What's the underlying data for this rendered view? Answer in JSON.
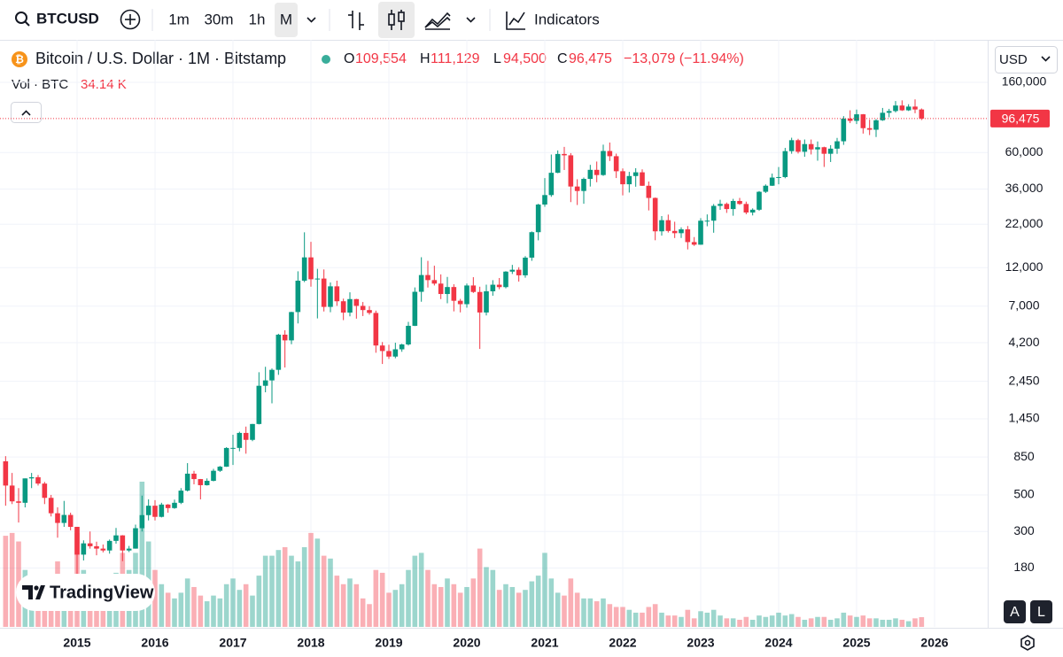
{
  "ui": {
    "symbol": "BTCUSD",
    "intervals": [
      "1m",
      "30m",
      "1h",
      "M"
    ],
    "indicators": "Indicators",
    "currency": "USD",
    "brand": "TradingView",
    "buttons": [
      "A",
      "L"
    ]
  },
  "chart_data": {
    "type": "candlestick",
    "title": "Bitcoin / U.S. Dollar · 1M · Bitstamp",
    "ohlc_prefixes": [
      "O",
      "H",
      "L",
      "C"
    ],
    "ohlc_labels": [
      "109,554",
      "111,129",
      "94,500",
      "96,475"
    ],
    "change_label": "−13,079 (−11.94%)",
    "volume_title": "Vol · BTC",
    "volume_label": "34.14 K",
    "log_scale": true,
    "grid": true,
    "up_color": "#089981",
    "down_color": "#f23645",
    "ylim": [
      79,
      290000
    ],
    "yticks": [
      {
        "value": 160000,
        "label": "160,000"
      },
      {
        "value": 60000,
        "label": "60,000"
      },
      {
        "value": 36000,
        "label": "36,000"
      },
      {
        "value": 22000,
        "label": "22,000"
      },
      {
        "value": 12000,
        "label": "12,000"
      },
      {
        "value": 7000,
        "label": "7,000"
      },
      {
        "value": 4200,
        "label": "4,200"
      },
      {
        "value": 2450,
        "label": "2,450"
      },
      {
        "value": 1450,
        "label": "1,450"
      },
      850,
      500,
      300,
      180
    ],
    "years": [
      "2015",
      "2016",
      "2017",
      "2018",
      "2019",
      "2020",
      "2021",
      "2022",
      "2023",
      "2024",
      "2025",
      "2026"
    ],
    "ohlc": [
      [
        800,
        860,
        430,
        570
      ],
      [
        570,
        680,
        440,
        457
      ],
      [
        457,
        550,
        340,
        448
      ],
      [
        448,
        630,
        420,
        630
      ],
      [
        630,
        680,
        550,
        640
      ],
      [
        640,
        660,
        570,
        586
      ],
      [
        586,
        600,
        440,
        480
      ],
      [
        480,
        500,
        370,
        387
      ],
      [
        387,
        420,
        275,
        338
      ],
      [
        338,
        460,
        320,
        378
      ],
      [
        378,
        390,
        305,
        320
      ],
      [
        320,
        320,
        152,
        217
      ],
      [
        217,
        265,
        200,
        254
      ],
      [
        254,
        300,
        236,
        244
      ],
      [
        244,
        260,
        215,
        236
      ],
      [
        236,
        250,
        224,
        230
      ],
      [
        230,
        268,
        220,
        263
      ],
      [
        263,
        315,
        253,
        284
      ],
      [
        284,
        285,
        198,
        230
      ],
      [
        230,
        245,
        225,
        236
      ],
      [
        236,
        330,
        236,
        314
      ],
      [
        314,
        495,
        300,
        377
      ],
      [
        377,
        470,
        350,
        430
      ],
      [
        430,
        465,
        350,
        368
      ],
      [
        368,
        448,
        365,
        437
      ],
      [
        437,
        440,
        390,
        416
      ],
      [
        416,
        468,
        412,
        448
      ],
      [
        448,
        550,
        440,
        531
      ],
      [
        531,
        780,
        525,
        673
      ],
      [
        673,
        700,
        580,
        624
      ],
      [
        624,
        625,
        470,
        573
      ],
      [
        573,
        630,
        570,
        609
      ],
      [
        609,
        720,
        605,
        701
      ],
      [
        701,
        750,
        690,
        742
      ],
      [
        742,
        975,
        740,
        964
      ],
      [
        964,
        1160,
        760,
        965
      ],
      [
        965,
        1210,
        920,
        1190
      ],
      [
        1190,
        1300,
        890,
        1080
      ],
      [
        1080,
        1350,
        1060,
        1348
      ],
      [
        1348,
        2780,
        1340,
        2300
      ],
      [
        2300,
        3000,
        2100,
        2480
      ],
      [
        2480,
        2930,
        1800,
        2875
      ],
      [
        2875,
        4760,
        2680,
        4700
      ],
      [
        4700,
        5000,
        2970,
        4340
      ],
      [
        4340,
        6470,
        4110,
        6450
      ],
      [
        6450,
        11400,
        5500,
        10000
      ],
      [
        10000,
        19666,
        9800,
        13850
      ],
      [
        13850,
        17200,
        9200,
        10200
      ],
      [
        10200,
        11800,
        5900,
        10300
      ],
      [
        10300,
        11700,
        6500,
        6930
      ],
      [
        6930,
        9750,
        6430,
        9240
      ],
      [
        9240,
        10000,
        7030,
        7500
      ],
      [
        7500,
        7780,
        5760,
        6400
      ],
      [
        6400,
        8500,
        6070,
        7730
      ],
      [
        7730,
        7760,
        5880,
        7030
      ],
      [
        7030,
        7420,
        6100,
        6630
      ],
      [
        6630,
        7000,
        6220,
        6370
      ],
      [
        6370,
        6580,
        3650,
        4040
      ],
      [
        4040,
        4240,
        3120,
        3740
      ],
      [
        3740,
        4080,
        3350,
        3460
      ],
      [
        3460,
        4200,
        3380,
        3830
      ],
      [
        3830,
        4140,
        3700,
        4100
      ],
      [
        4100,
        5620,
        4040,
        5320
      ],
      [
        5320,
        9100,
        5300,
        8560
      ],
      [
        8560,
        13880,
        7450,
        10820
      ],
      [
        10820,
        13180,
        9080,
        10080
      ],
      [
        10080,
        12330,
        9350,
        9600
      ],
      [
        9600,
        10920,
        7730,
        8300
      ],
      [
        8300,
        10540,
        7290,
        9150
      ],
      [
        9150,
        9510,
        6510,
        7550
      ],
      [
        7550,
        7750,
        6420,
        7200
      ],
      [
        7200,
        9600,
        6850,
        9350
      ],
      [
        9350,
        10500,
        8420,
        8540
      ],
      [
        8540,
        9190,
        3850,
        6410
      ],
      [
        6410,
        9460,
        6150,
        8620
      ],
      [
        8620,
        10070,
        8100,
        9450
      ],
      [
        9450,
        10380,
        8870,
        9140
      ],
      [
        9140,
        11420,
        8980,
        11350
      ],
      [
        11350,
        12470,
        10980,
        11650
      ],
      [
        11650,
        12070,
        9870,
        10780
      ],
      [
        10780,
        14100,
        10430,
        13800
      ],
      [
        13800,
        19900,
        13200,
        19700
      ],
      [
        19700,
        29300,
        17580,
        28990
      ],
      [
        28990,
        41950,
        28130,
        33100
      ],
      [
        33100,
        58350,
        32300,
        45200
      ],
      [
        45200,
        61790,
        44950,
        58800
      ],
      [
        58800,
        64900,
        47000,
        57700
      ],
      [
        57700,
        59500,
        30000,
        37300
      ],
      [
        37300,
        41300,
        28800,
        35040
      ],
      [
        35040,
        42300,
        29300,
        41500
      ],
      [
        41500,
        50500,
        37300,
        47100
      ],
      [
        47100,
        52900,
        39600,
        43800
      ],
      [
        43800,
        67000,
        43300,
        61300
      ],
      [
        61300,
        69000,
        53300,
        57000
      ],
      [
        57000,
        59100,
        42000,
        46200
      ],
      [
        46200,
        47990,
        32950,
        38500
      ],
      [
        38500,
        45800,
        34300,
        43200
      ],
      [
        43200,
        48200,
        37200,
        45500
      ],
      [
        45500,
        47450,
        37600,
        37700
      ],
      [
        37700,
        40000,
        26700,
        31800
      ],
      [
        31800,
        31990,
        17600,
        19940
      ],
      [
        19940,
        24670,
        18780,
        23300
      ],
      [
        23300,
        25200,
        19600,
        20050
      ],
      [
        20050,
        22800,
        18150,
        19430
      ],
      [
        19430,
        21080,
        18180,
        20500
      ],
      [
        20500,
        21480,
        15480,
        17150
      ],
      [
        17150,
        18400,
        16260,
        16540
      ],
      [
        16540,
        23960,
        16500,
        23130
      ],
      [
        23130,
        25250,
        21400,
        23140
      ],
      [
        23140,
        29190,
        19550,
        28460
      ],
      [
        28460,
        31000,
        26940,
        29250
      ],
      [
        29250,
        29820,
        25800,
        27220
      ],
      [
        27220,
        31400,
        24800,
        30480
      ],
      [
        30480,
        31800,
        28860,
        29230
      ],
      [
        29230,
        30200,
        25300,
        25940
      ],
      [
        25940,
        27490,
        24900,
        26970
      ],
      [
        26970,
        35000,
        26540,
        34660
      ],
      [
        34660,
        38420,
        34080,
        37720
      ],
      [
        37720,
        44700,
        37600,
        42280
      ],
      [
        42280,
        48970,
        38500,
        42580
      ],
      [
        42580,
        64000,
        41880,
        61180
      ],
      [
        61180,
        73800,
        59000,
        71300
      ],
      [
        71300,
        72750,
        59200,
        60650
      ],
      [
        60650,
        71980,
        56550,
        67520
      ],
      [
        67520,
        71960,
        58400,
        62680
      ],
      [
        62680,
        70000,
        53500,
        64630
      ],
      [
        64630,
        65100,
        49050,
        58970
      ],
      [
        58970,
        66500,
        52550,
        63330
      ],
      [
        63330,
        73600,
        58900,
        70220
      ],
      [
        70220,
        99800,
        66800,
        96400
      ],
      [
        96400,
        108300,
        90500,
        93430
      ],
      [
        93430,
        109350,
        89250,
        102400
      ],
      [
        102400,
        102760,
        78200,
        84350
      ],
      [
        84350,
        95000,
        76600,
        82530
      ],
      [
        82530,
        95770,
        74500,
        94200
      ],
      [
        94200,
        111900,
        93400,
        104600
      ],
      [
        104600,
        110500,
        98200,
        107170
      ],
      [
        107170,
        123200,
        105100,
        115760
      ],
      [
        115760,
        124400,
        107300,
        108250
      ],
      [
        108250,
        117900,
        107250,
        114050
      ],
      [
        114050,
        126200,
        104000,
        109554
      ],
      [
        109554,
        111129,
        94500,
        96475
      ]
    ],
    "volume": [
      320000,
      330000,
      300000,
      200000,
      160000,
      130000,
      130000,
      180000,
      230000,
      180000,
      150000,
      330000,
      200000,
      170000,
      130000,
      110000,
      130000,
      190000,
      260000,
      200000,
      260000,
      510000,
      300000,
      200000,
      150000,
      120000,
      100000,
      120000,
      170000,
      140000,
      110000,
      90000,
      110000,
      100000,
      150000,
      170000,
      130000,
      150000,
      110000,
      180000,
      250000,
      250000,
      270000,
      280000,
      250000,
      230000,
      280000,
      330000,
      310000,
      250000,
      240000,
      180000,
      150000,
      170000,
      150000,
      100000,
      80000,
      200000,
      190000,
      120000,
      130000,
      150000,
      200000,
      250000,
      260000,
      200000,
      150000,
      140000,
      170000,
      150000,
      120000,
      140000,
      170000,
      275000,
      210000,
      200000,
      130000,
      150000,
      140000,
      120000,
      130000,
      160000,
      180000,
      260000,
      170000,
      120000,
      110000,
      170000,
      120000,
      100000,
      100000,
      90000,
      100000,
      80000,
      70000,
      70000,
      60000,
      50000,
      50000,
      70000,
      80000,
      50000,
      40000,
      40000,
      35000,
      60000,
      30000,
      55000,
      50000,
      60000,
      40000,
      30000,
      30000,
      25000,
      35000,
      25000,
      40000,
      35000,
      40000,
      50000,
      40000,
      45000,
      35000,
      25000,
      30000,
      35000,
      35000,
      25000,
      30000,
      50000,
      40000,
      35000,
      40000,
      30000,
      30000,
      25000,
      25000,
      30000,
      25000,
      20000,
      30000,
      34140
    ]
  }
}
